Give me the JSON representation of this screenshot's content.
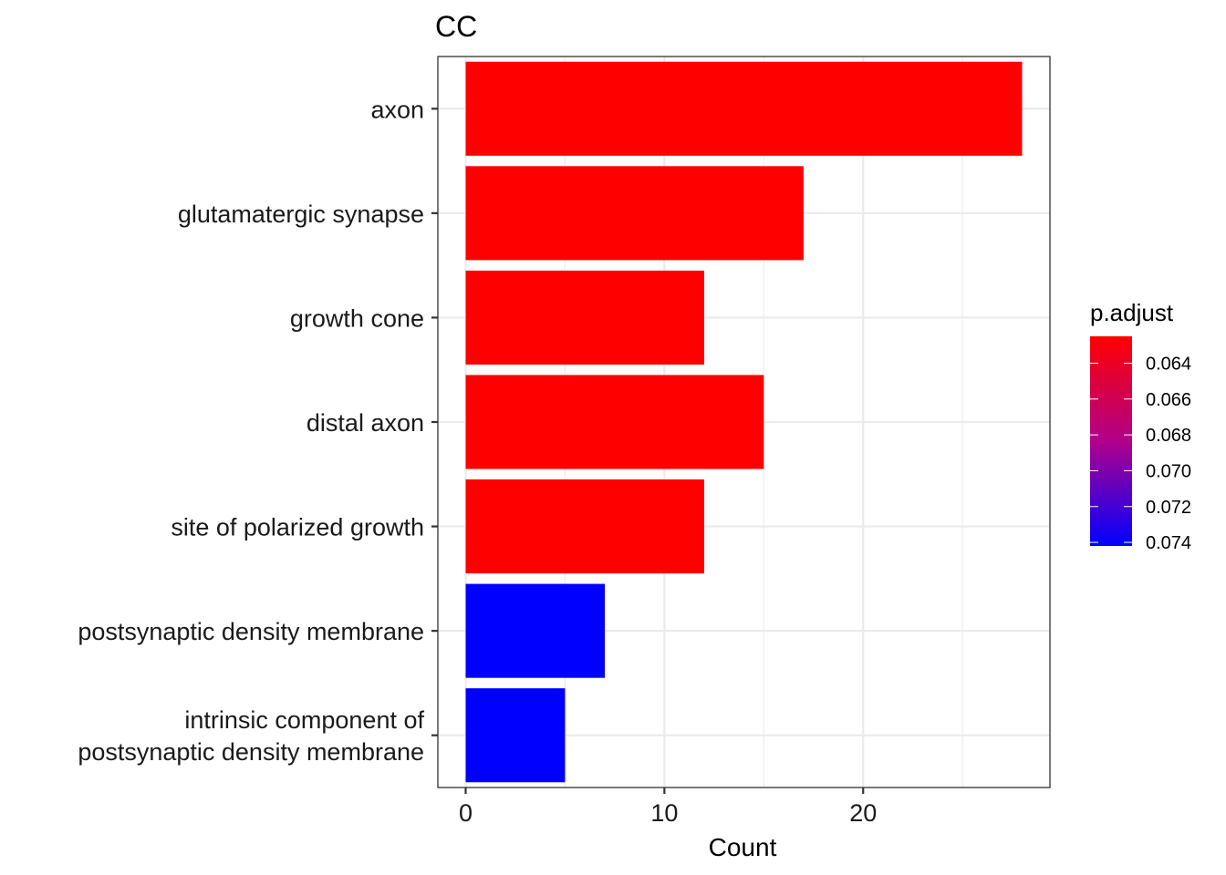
{
  "chart_data": {
    "type": "bar",
    "orientation": "horizontal",
    "title": "CC",
    "xlabel": "Count",
    "ylabel": "",
    "xlim": [
      -1.4,
      29.4
    ],
    "xticks": [
      0,
      10,
      20
    ],
    "grid": true,
    "categories": [
      "axon",
      "glutamatergic synapse",
      "growth cone",
      "distal axon",
      "site of polarized growth",
      "postsynaptic density membrane",
      "intrinsic component of\npostsynaptic density membrane"
    ],
    "values": [
      28,
      17,
      12,
      15,
      12,
      7,
      5
    ],
    "p_adjust": [
      0.0625,
      0.0625,
      0.0625,
      0.0625,
      0.0625,
      0.0742,
      0.0742
    ],
    "legend": {
      "title": "p.adjust",
      "placement": "right",
      "ticks": [
        "0.064",
        "0.066",
        "0.068",
        "0.070",
        "0.072",
        "0.074"
      ],
      "tick_values": [
        0.064,
        0.066,
        0.068,
        0.07,
        0.072,
        0.074
      ],
      "range": [
        0.0625,
        0.0742
      ],
      "low_color": "#ff0000",
      "high_color": "#0000ff"
    }
  }
}
